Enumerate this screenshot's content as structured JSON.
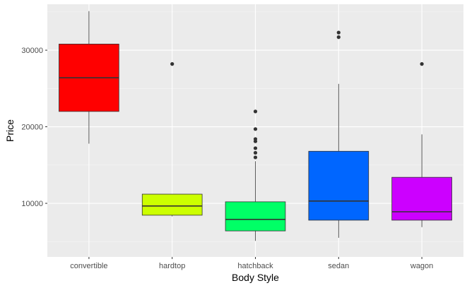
{
  "chart_data": {
    "type": "boxplot",
    "xlabel": "Body Style",
    "ylabel": "Price",
    "ylim": [
      3000,
      36000
    ],
    "y_ticks": [
      10000,
      20000,
      30000
    ],
    "y_tick_labels": [
      "10000",
      "20000",
      "30000"
    ],
    "legend": "none",
    "grid": true,
    "categories": [
      "convertible",
      "hardtop",
      "hatchback",
      "sedan",
      "wagon"
    ],
    "boxes": [
      {
        "category": "convertible",
        "fill": "#FF0000",
        "whisker_low": 17800,
        "q1": 22000,
        "median": 26400,
        "q3": 30800,
        "whisker_high": 35100,
        "outliers": []
      },
      {
        "category": "hardtop",
        "fill": "#CCFF00",
        "whisker_low": 8300,
        "q1": 8450,
        "median": 9650,
        "q3": 11200,
        "whisker_high": 11200,
        "outliers": [
          28200
        ]
      },
      {
        "category": "hatchback",
        "fill": "#00FF66",
        "whisker_low": 5100,
        "q1": 6400,
        "median": 7900,
        "q3": 10200,
        "whisker_high": 15500,
        "outliers": [
          16000,
          16600,
          17200,
          18100,
          18400,
          19700,
          22000
        ]
      },
      {
        "category": "sedan",
        "fill": "#0066FF",
        "whisker_low": 5500,
        "q1": 7800,
        "median": 10300,
        "q3": 16800,
        "whisker_high": 25600,
        "outliers": [
          31700,
          32300
        ]
      },
      {
        "category": "wagon",
        "fill": "#CC00FF",
        "whisker_low": 6900,
        "q1": 7800,
        "median": 8900,
        "q3": 13400,
        "whisker_high": 19000,
        "outliers": [
          28200
        ]
      }
    ]
  }
}
